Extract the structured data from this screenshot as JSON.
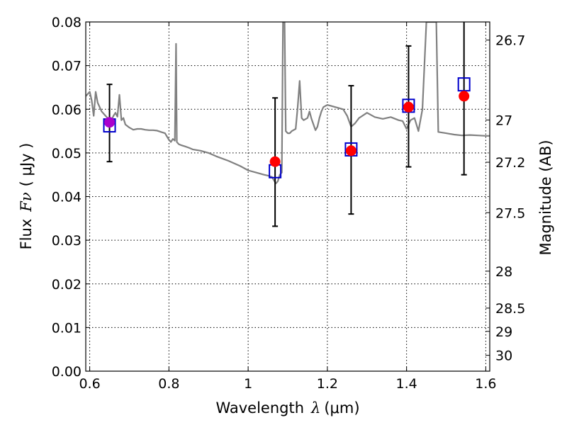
{
  "chart_data": {
    "type": "scatter",
    "xlabel_prefix": "Wavelength",
    "xlabel_symbol": "λ",
    "xlabel_unit": "(μm)",
    "ylabel_prefix": "Flux",
    "ylabel_symbol": "Fν",
    "ylabel_unit": "( μJy )",
    "y2label": "Magnitude (AB)",
    "xlim": [
      0.59,
      1.61
    ],
    "ylim": [
      0.0,
      0.08
    ],
    "x_ticks": [
      0.6,
      0.8,
      1.0,
      1.2,
      1.4,
      1.6
    ],
    "x_tick_labels": [
      "0.6",
      "0.8",
      "1",
      "1.2",
      "1.4",
      "1.6"
    ],
    "y_ticks": [
      0.0,
      0.01,
      0.02,
      0.03,
      0.04,
      0.05,
      0.06,
      0.07,
      0.08
    ],
    "y_tick_labels": [
      "0.00",
      "0.01",
      "0.02",
      "0.03",
      "0.04",
      "0.05",
      "0.06",
      "0.07",
      "0.08"
    ],
    "y2_ticks": [
      26.7,
      27,
      27.2,
      27.5,
      28,
      28.5,
      29,
      30
    ],
    "y2_tick_labels": [
      "26.7",
      "27",
      "27.2",
      "27.5",
      "28",
      "28.5",
      "29",
      "30"
    ],
    "grid": true,
    "colors": {
      "model": "#808080",
      "observed": "#ff0000",
      "synthetic": "#0000cc",
      "errorbar": "#000000",
      "overlap_point": "#aa00cc"
    },
    "observed_points": {
      "x": [
        0.65,
        1.068,
        1.26,
        1.405,
        1.545
      ],
      "y": [
        0.057,
        0.048,
        0.0505,
        0.0605,
        0.063
      ],
      "y_low": [
        0.048,
        0.0332,
        0.036,
        0.0468,
        0.045
      ],
      "y_high": [
        0.0657,
        0.0626,
        0.0654,
        0.0745,
        0.08
      ]
    },
    "synthetic_points": {
      "x": [
        0.65,
        1.068,
        1.26,
        1.405,
        1.545
      ],
      "y": [
        0.0563,
        0.0458,
        0.0508,
        0.0608,
        0.0657
      ]
    },
    "model_spectrum": {
      "x": [
        0.59,
        0.6,
        0.605,
        0.61,
        0.615,
        0.62,
        0.63,
        0.64,
        0.645,
        0.65,
        0.655,
        0.66,
        0.665,
        0.67,
        0.675,
        0.68,
        0.685,
        0.69,
        0.7,
        0.71,
        0.72,
        0.73,
        0.74,
        0.75,
        0.76,
        0.77,
        0.78,
        0.79,
        0.8,
        0.805,
        0.81,
        0.815,
        0.818,
        0.82,
        0.825,
        0.83,
        0.84,
        0.85,
        0.86,
        0.88,
        0.9,
        0.92,
        0.95,
        0.98,
        1.0,
        1.02,
        1.04,
        1.05,
        1.06,
        1.07,
        1.075,
        1.08,
        1.085,
        1.088,
        1.092,
        1.095,
        1.1,
        1.105,
        1.11,
        1.12,
        1.125,
        1.13,
        1.135,
        1.14,
        1.15,
        1.155,
        1.16,
        1.17,
        1.175,
        1.18,
        1.185,
        1.19,
        1.2,
        1.22,
        1.24,
        1.25,
        1.26,
        1.27,
        1.28,
        1.3,
        1.32,
        1.34,
        1.36,
        1.38,
        1.39,
        1.4,
        1.41,
        1.42,
        1.43,
        1.44,
        1.45,
        1.46,
        1.465,
        1.475,
        1.48,
        1.5,
        1.52,
        1.54,
        1.56,
        1.58,
        1.6,
        1.61
      ],
      "y": [
        0.063,
        0.064,
        0.062,
        0.0585,
        0.064,
        0.0615,
        0.0595,
        0.0585,
        0.058,
        0.0572,
        0.0575,
        0.0585,
        0.0592,
        0.0583,
        0.0633,
        0.0575,
        0.058,
        0.0565,
        0.0558,
        0.0553,
        0.0555,
        0.0555,
        0.0553,
        0.0552,
        0.0552,
        0.0551,
        0.0548,
        0.0545,
        0.053,
        0.0525,
        0.0532,
        0.0528,
        0.075,
        0.0525,
        0.052,
        0.0518,
        0.0515,
        0.0512,
        0.0508,
        0.0505,
        0.05,
        0.0492,
        0.0482,
        0.047,
        0.046,
        0.0455,
        0.045,
        0.0448,
        0.0445,
        0.043,
        0.0435,
        0.045,
        0.0455,
        0.08,
        0.08,
        0.055,
        0.0545,
        0.0545,
        0.055,
        0.0555,
        0.0605,
        0.0665,
        0.058,
        0.0575,
        0.058,
        0.0595,
        0.0578,
        0.0552,
        0.056,
        0.058,
        0.0595,
        0.0605,
        0.061,
        0.0605,
        0.06,
        0.0585,
        0.056,
        0.0568,
        0.058,
        0.0592,
        0.0582,
        0.0578,
        0.0582,
        0.0575,
        0.0573,
        0.0555,
        0.0575,
        0.058,
        0.055,
        0.06,
        0.08,
        0.08,
        0.08,
        0.08,
        0.0548,
        0.0545,
        0.0542,
        0.054,
        0.0541,
        0.054,
        0.0539,
        0.0539
      ]
    }
  }
}
